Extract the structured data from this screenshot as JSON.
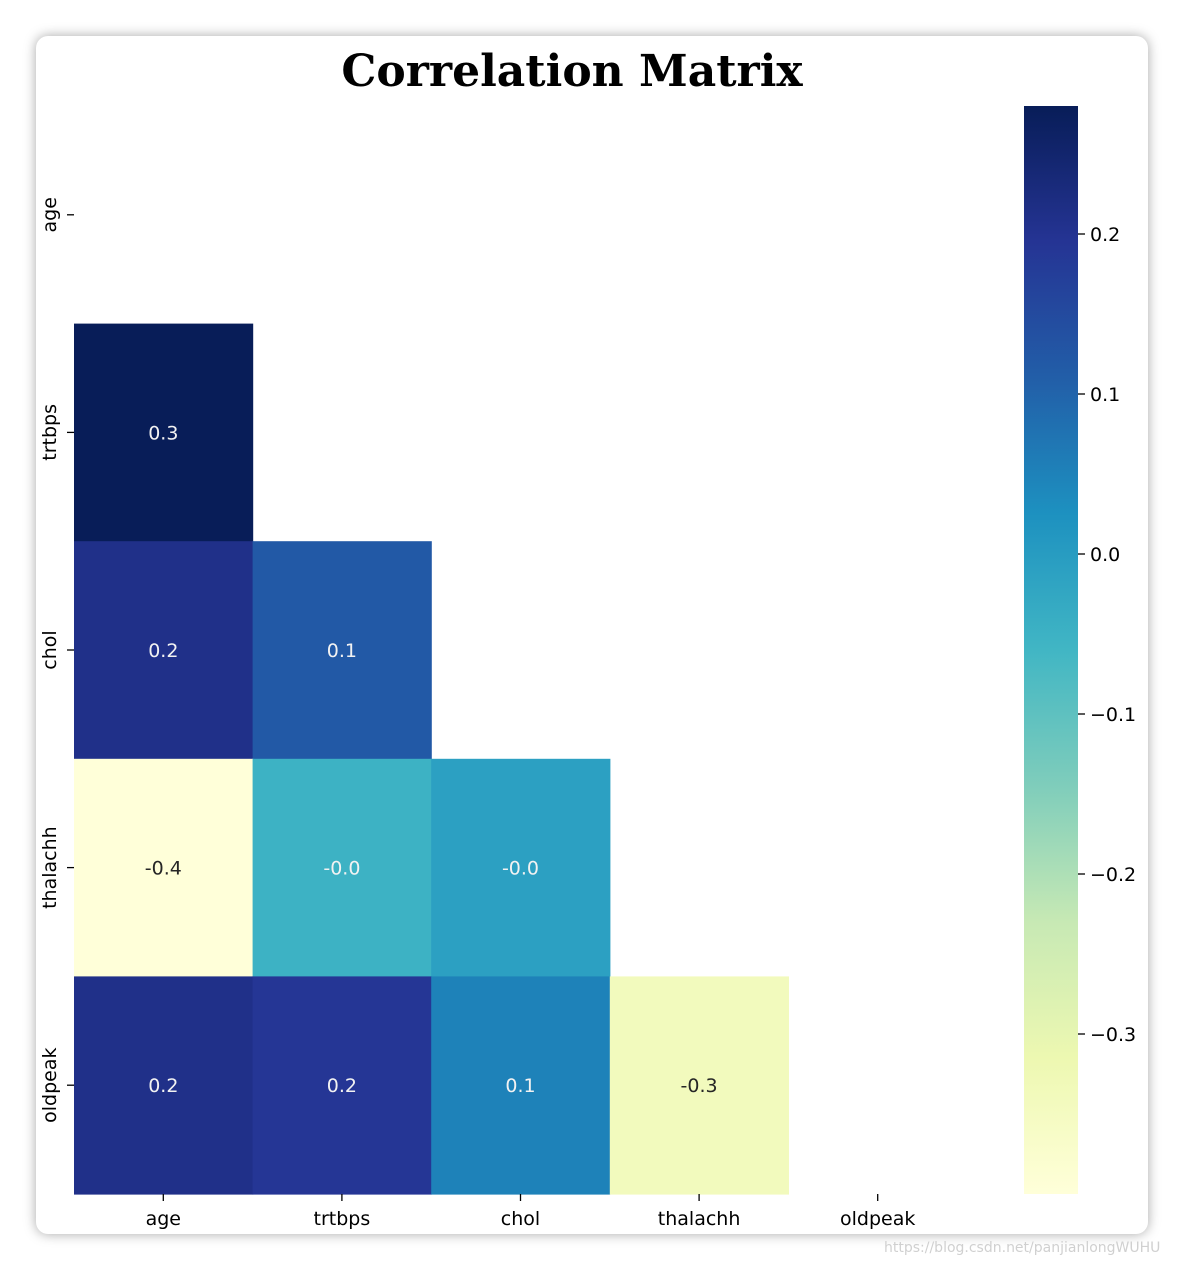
{
  "chart_data": {
    "type": "heatmap",
    "title": "Correlation Matrix",
    "variables": [
      "age",
      "trtbps",
      "chol",
      "thalachh",
      "oldpeak"
    ],
    "mask": "upper-triangle-including-diagonal",
    "cells": [
      {
        "row": "trtbps",
        "col": "age",
        "value": 0.28,
        "label": "0.3"
      },
      {
        "row": "chol",
        "col": "age",
        "value": 0.21,
        "label": "0.2"
      },
      {
        "row": "chol",
        "col": "trtbps",
        "value": 0.12,
        "label": "0.1"
      },
      {
        "row": "thalachh",
        "col": "age",
        "value": -0.4,
        "label": "-0.4"
      },
      {
        "row": "thalachh",
        "col": "trtbps",
        "value": -0.05,
        "label": "-0.0"
      },
      {
        "row": "thalachh",
        "col": "chol",
        "value": -0.01,
        "label": "-0.0"
      },
      {
        "row": "oldpeak",
        "col": "age",
        "value": 0.21,
        "label": "0.2"
      },
      {
        "row": "oldpeak",
        "col": "trtbps",
        "value": 0.19,
        "label": "0.2"
      },
      {
        "row": "oldpeak",
        "col": "chol",
        "value": 0.05,
        "label": "0.1"
      },
      {
        "row": "oldpeak",
        "col": "thalachh",
        "value": -0.34,
        "label": "-0.3"
      }
    ],
    "colormap": "YlGnBu",
    "colorbar": {
      "vmin": -0.4,
      "vmax": 0.28,
      "ticks": [
        0.2,
        0.1,
        0.0,
        -0.1,
        -0.2,
        -0.3
      ],
      "tick_labels": [
        "0.2",
        "0.1",
        "0.0",
        "−0.1",
        "−0.2",
        "−0.3"
      ]
    }
  },
  "watermark": "https://blog.csdn.net/panjianlongWUHU"
}
